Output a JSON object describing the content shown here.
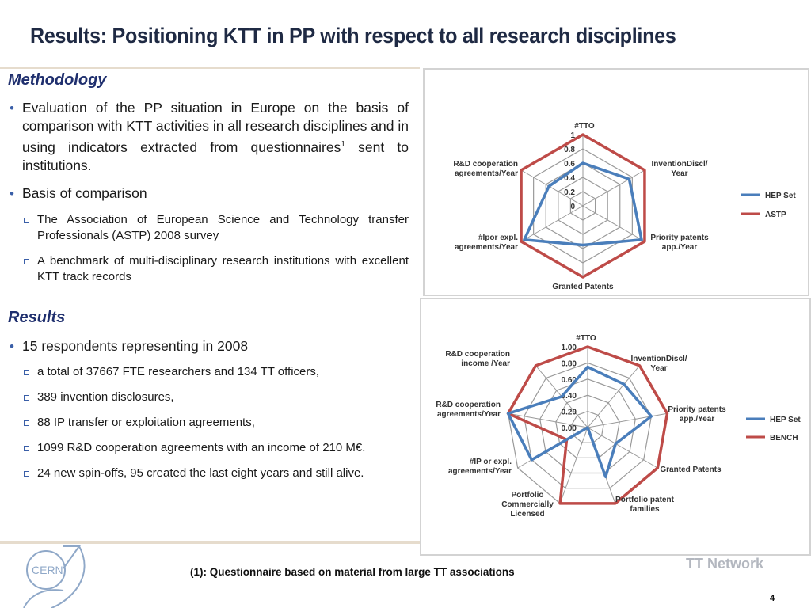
{
  "title": "Results: Positioning KTT in PP with respect to all research disciplines",
  "methodology": {
    "heading": "Methodology",
    "bullet1_pre": "Evaluation of the PP situation in Europe on the basis of comparison with KTT activities in all research disciplines and in using indicators extracted from questionnaires",
    "bullet1_sup": "1",
    "bullet1_post": " sent to institutions.",
    "bullet2": "Basis of comparison",
    "sub": [
      "The Association of European Science and Technology transfer Professionals (ASTP) 2008 survey",
      "A benchmark of multi-disciplinary research institutions with excellent KTT track records"
    ]
  },
  "results": {
    "heading": "Results",
    "bullet1": "15 respondents representing in 2008",
    "sub": [
      "a total of 37667 FTE researchers and 134 TT officers,",
      "389 invention disclosures,",
      "88 IP transfer or exploitation agreements,",
      "1099 R&D cooperation agreements with an income of 210 M€.",
      "24 new spin-offs, 95 created the last eight years and still alive."
    ]
  },
  "footnote": "(1): Questionnaire based on  material from large TT associations",
  "tt_network": "TT Network",
  "page_number": "4",
  "logo_text": "CERN",
  "chart_data": [
    {
      "type": "radar",
      "axes": [
        "#TTO",
        "InventionDiscl/ Year",
        "Priority patents app./Year",
        "Granted Patents",
        "#Ipor expl. agreements/Year",
        "R&D cooperation agreements/Year"
      ],
      "tick_labels": [
        "1",
        "0.8",
        "0.6",
        "0.4",
        "0.2",
        "0"
      ],
      "range": [
        0,
        1
      ],
      "legend_position": "right",
      "series": [
        {
          "name": "HEP Set",
          "color": "#4a7ebb",
          "values": [
            0.6,
            0.75,
            0.95,
            0.55,
            0.95,
            0.55
          ]
        },
        {
          "name": "ASTP",
          "color": "#be4b48",
          "values": [
            1.0,
            1.0,
            1.0,
            1.0,
            1.0,
            1.0
          ]
        }
      ]
    },
    {
      "type": "radar",
      "axes": [
        "#TTO",
        "InventionDiscl/ Year",
        "Priority patents app./Year",
        "Granted Patents",
        "Portfolio patent families",
        "Portfolio Commercially Licensed",
        "#IP or expl. agreements/Year",
        "R&D cooperation agreements/Year",
        "R&D cooperation income /Year"
      ],
      "tick_labels": [
        "1.00",
        "0.80",
        "0.60",
        "0.40",
        "0.20",
        "0.00"
      ],
      "range": [
        0,
        1
      ],
      "legend_position": "right",
      "series": [
        {
          "name": "HEP Set",
          "color": "#4a7ebb",
          "values": [
            0.75,
            0.7,
            0.8,
            0.4,
            0.65,
            0.0,
            0.8,
            1.0,
            0.5
          ]
        },
        {
          "name": "BENCH",
          "color": "#be4b48",
          "values": [
            1.0,
            1.0,
            1.0,
            1.0,
            1.0,
            1.0,
            0.3,
            1.0,
            1.0
          ]
        }
      ]
    }
  ]
}
